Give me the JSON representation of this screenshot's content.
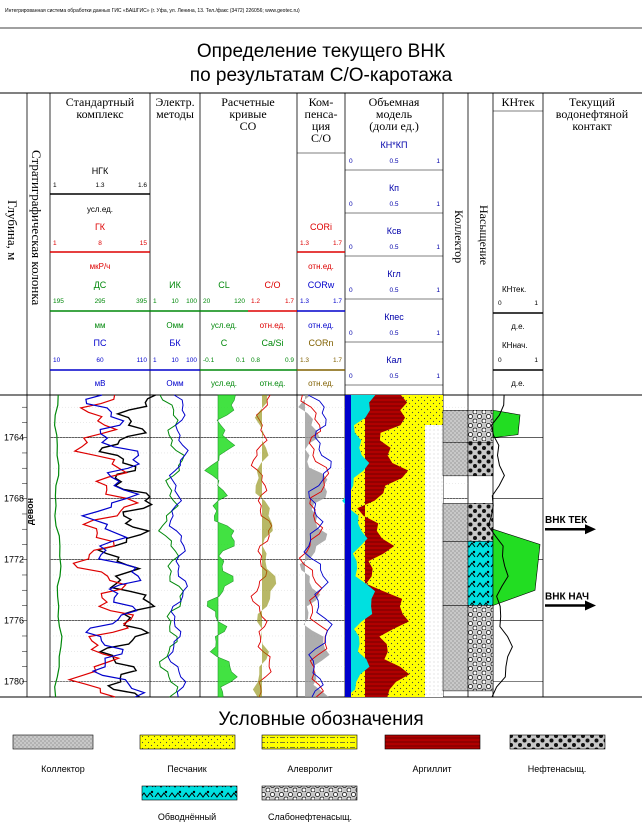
{
  "header_line": "Интегрированная система обработки данных ГИС «БАШГИС» (г. Уфа, ул. Ленина, 13. Тел./факс (3472) 226056; www.geotec.ru)",
  "title_line1": "Определение текущего ВНК",
  "title_line2": "по результатам С/О-каротажа",
  "columns": {
    "depth": "Глубина, м",
    "strat": "Стратиграфическая колонка",
    "standard": [
      "Стандартный",
      "комплекс"
    ],
    "electric": [
      "Электр.",
      "методы"
    ],
    "calc": [
      "Расчетные",
      "кривые",
      "СО"
    ],
    "comp": [
      "Ком-",
      "пенса-",
      "ция",
      "С/О"
    ],
    "volume": [
      "Объемная",
      "модель",
      "(доли ед.)"
    ],
    "collector": "Коллектор",
    "saturation": "Насыщение",
    "knt": "КНтек",
    "contact": [
      "Текущий",
      "водонефтяной",
      "контакт"
    ]
  },
  "curves": {
    "ngk": {
      "name": "НГК",
      "min": "1",
      "mid": "1.3",
      "max": "1.6",
      "unit": "усл.ед.",
      "color": "#000000"
    },
    "gk": {
      "name": "ГК",
      "min": "1",
      "mid": "8",
      "max": "15",
      "unit": "мкР/ч",
      "color": "#dd0000"
    },
    "ds": {
      "name": "ДС",
      "min": "195",
      "mid": "295",
      "max": "395",
      "unit": "мм",
      "color": "#00880a"
    },
    "ps": {
      "name": "ПС",
      "min": "10",
      "mid": "60",
      "max": "110",
      "unit": "мВ",
      "color": "#0000cc"
    },
    "ik": {
      "name": "ИК",
      "min": "1",
      "mid": "10",
      "max": "100",
      "unit": "Омм",
      "color": "#00880a"
    },
    "bk": {
      "name": "БК",
      "min": "1",
      "mid": "10",
      "max": "100",
      "unit": "Омм",
      "color": "#0000cc"
    },
    "cl": {
      "name": "CL",
      "min": "20",
      "max": "120",
      "unit": "усл.ед.",
      "color": "#00880a"
    },
    "co": {
      "name": "C/O",
      "min": "1.2",
      "max": "1.7",
      "unit": "отн.ед.",
      "color": "#dd0000"
    },
    "c": {
      "name": "C",
      "min": "-0.1",
      "max": "0.1",
      "unit": "усл.ед.",
      "color": "#00880a"
    },
    "casi": {
      "name": "Ca/Si",
      "min": "0.8",
      "max": "0.9",
      "unit": "отн.ед.",
      "color": "#00880a"
    },
    "cori": {
      "name": "CORi",
      "min": "1.3",
      "max": "1.7",
      "unit": "отн.ед.",
      "color": "#dd0000"
    },
    "corw": {
      "name": "CORw",
      "min": "1.3",
      "max": "1.7",
      "unit": "отн.ед.",
      "color": "#0000cc"
    },
    "corn": {
      "name": "CORn",
      "min": "1.3",
      "max": "1.7",
      "unit": "отн.ед.",
      "color": "#806000"
    }
  },
  "volume_scales": [
    {
      "name": "КН*КП",
      "min": "0",
      "mid": "0.5",
      "max": "1"
    },
    {
      "name": "Кп",
      "min": "0",
      "mid": "0.5",
      "max": "1"
    },
    {
      "name": "Ксв",
      "min": "0",
      "mid": "0.5",
      "max": "1"
    },
    {
      "name": "Кгл",
      "min": "0",
      "mid": "0.5",
      "max": "1"
    },
    {
      "name": "Кпес",
      "min": "0",
      "mid": "0.5",
      "max": "1"
    },
    {
      "name": "Кал",
      "min": "0",
      "mid": "0.5",
      "max": "1"
    }
  ],
  "knt_scales": {
    "kn_tek": "КНтек.",
    "kn_nach": "КНнач.",
    "min": "0",
    "max": "1",
    "unit": "д.е."
  },
  "depth_ticks": [
    "1764",
    "1768",
    "1772",
    "1776",
    "1780"
  ],
  "strat_label": "девон",
  "contacts": {
    "current": "ВНК ТЕК",
    "initial": "ВНК НАЧ"
  },
  "legend": {
    "title": "Условные обозначения",
    "items": [
      {
        "label": "Коллектор",
        "pattern": "collector"
      },
      {
        "label": "Песчаник",
        "pattern": "sand"
      },
      {
        "label": "Алевролит",
        "pattern": "silt"
      },
      {
        "label": "Аргиллит",
        "pattern": "argil"
      },
      {
        "label": "Нефтенасыщ.",
        "pattern": "oil"
      },
      {
        "label": "Обводнённый",
        "pattern": "water"
      },
      {
        "label": "Слабонефтенасыщ.",
        "pattern": "weakoil"
      }
    ]
  }
}
